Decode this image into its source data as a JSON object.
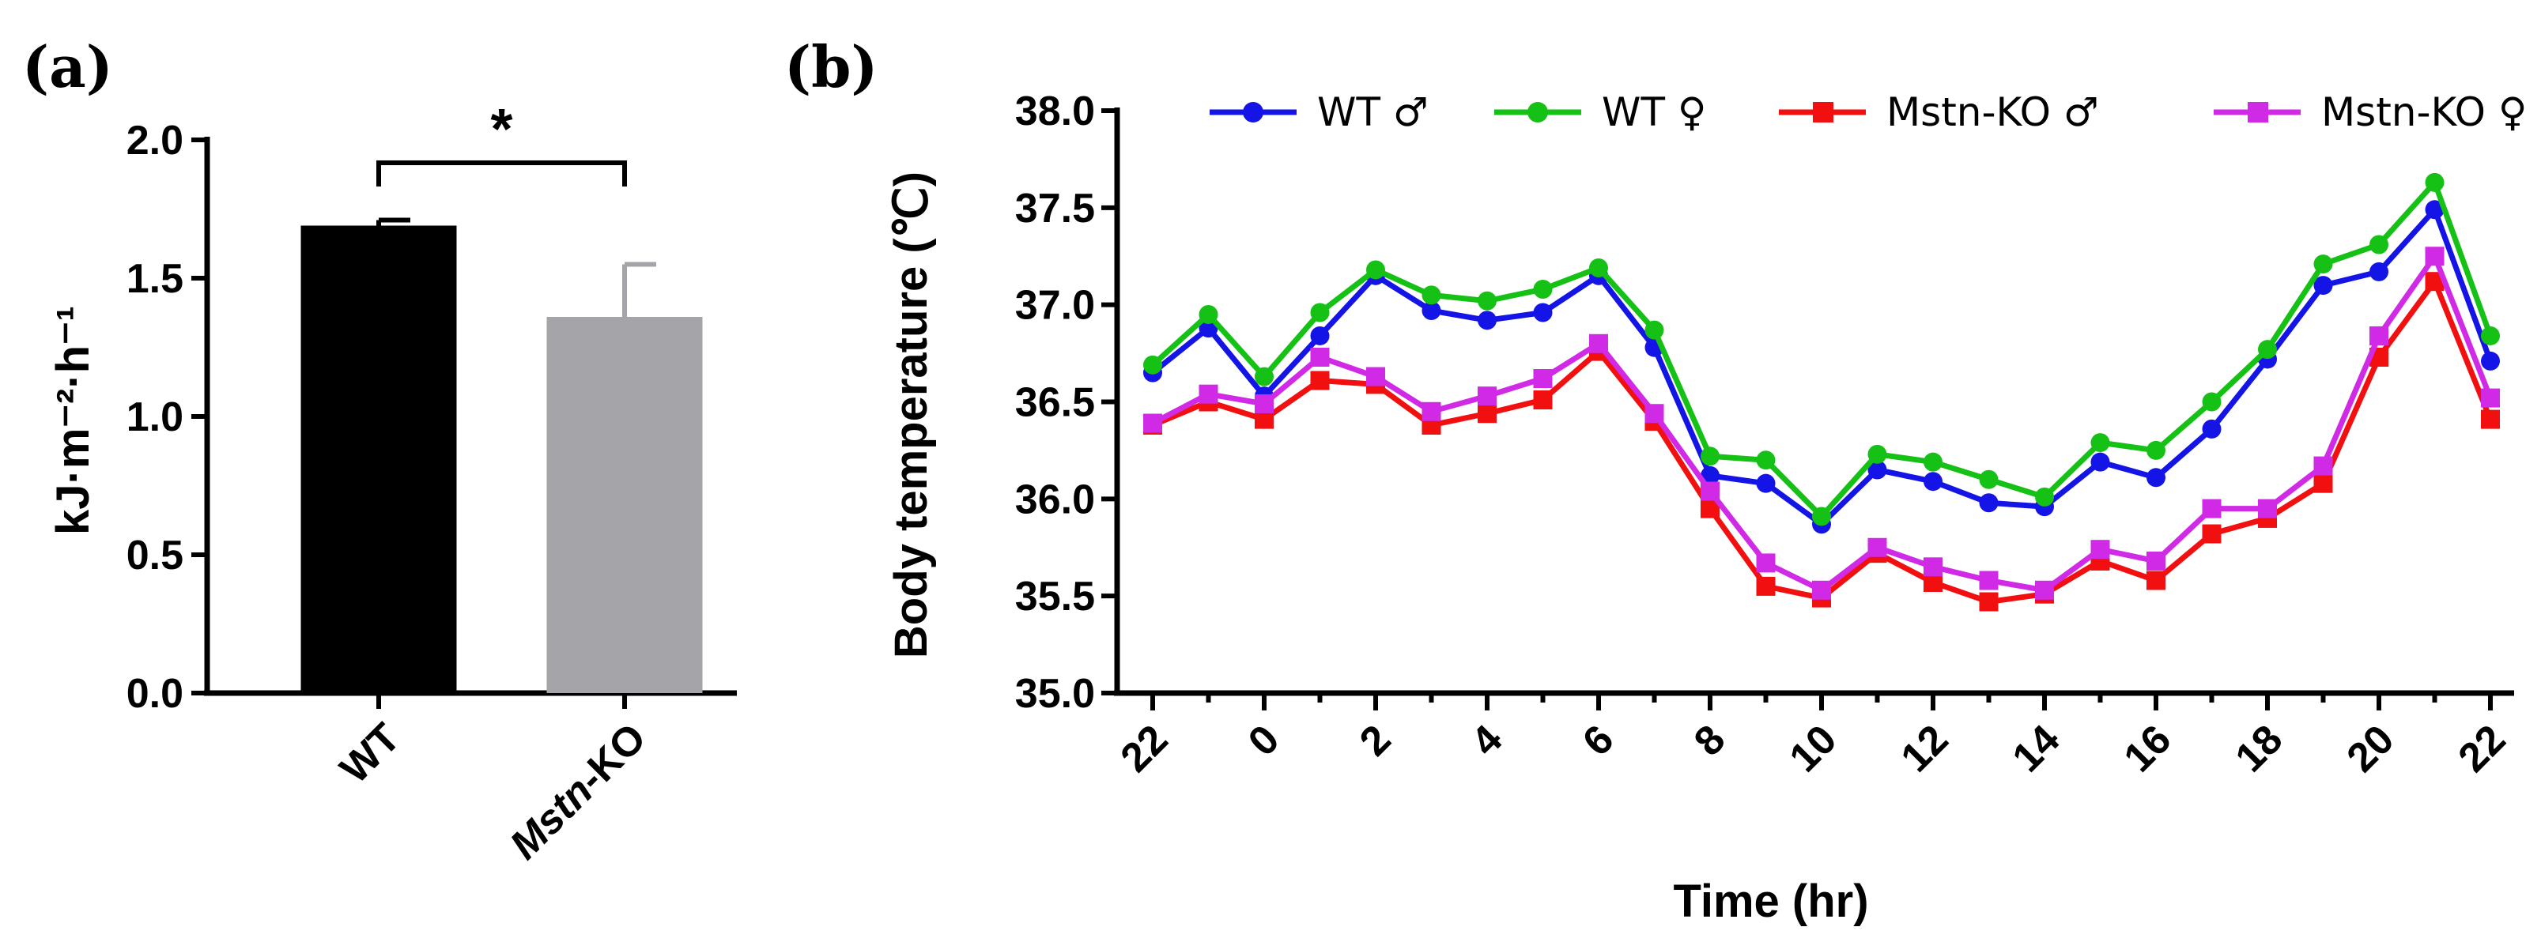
{
  "panels": {
    "a_label": "(a)",
    "b_label": "(b)"
  },
  "chart_data": [
    {
      "type": "bar",
      "ylabel": "kJ·m⁻²·h⁻¹",
      "ylim": [
        0,
        2.0
      ],
      "yticks": [
        "0.0",
        "0.5",
        "1.0",
        "1.5",
        "2.0"
      ],
      "categories": [
        {
          "label": "WT",
          "name_italic": "",
          "name_rest": "WT"
        },
        {
          "label": "Mstn-KO",
          "name_italic": "Mstn",
          "name_rest": "-KO"
        }
      ],
      "values": [
        1.69,
        1.36
      ],
      "errors": [
        0.02,
        0.19
      ],
      "colors": [
        "#000000",
        "#a5a4a9"
      ],
      "significance": {
        "between": [
          0,
          1
        ],
        "label": "*"
      }
    },
    {
      "type": "line",
      "ylabel": "Body temperature (℃)",
      "xlabel": "Time (hr)",
      "ylim": [
        35.0,
        38.0
      ],
      "yticks": [
        "35.0",
        "35.5",
        "36.0",
        "36.5",
        "37.0",
        "37.5",
        "38.0"
      ],
      "x_tick_labels": [
        "22",
        "0",
        "2",
        "4",
        "6",
        "8",
        "10",
        "12",
        "14",
        "16",
        "18",
        "20",
        "22"
      ],
      "x_hours": [
        "22",
        "23",
        "0",
        "1",
        "2",
        "3",
        "4",
        "5",
        "6",
        "7",
        "8",
        "9",
        "10",
        "11",
        "12",
        "13",
        "14",
        "15",
        "16",
        "17",
        "18",
        "19",
        "20",
        "21",
        "22"
      ],
      "legend_placement": "top",
      "series": [
        {
          "name": "WT ♂",
          "color": "#1414e6",
          "marker": "circle",
          "values": [
            36.65,
            36.88,
            36.53,
            36.84,
            37.15,
            36.97,
            36.92,
            36.96,
            37.15,
            36.78,
            36.12,
            36.08,
            35.87,
            36.15,
            36.09,
            35.98,
            35.96,
            36.19,
            36.11,
            36.36,
            36.72,
            37.1,
            37.17,
            37.49,
            36.71
          ]
        },
        {
          "name": "WT ♀",
          "color": "#16c116",
          "marker": "circle",
          "values": [
            36.69,
            36.95,
            36.63,
            36.96,
            37.18,
            37.05,
            37.02,
            37.08,
            37.19,
            36.87,
            36.22,
            36.2,
            35.91,
            36.23,
            36.19,
            36.1,
            36.01,
            36.29,
            36.25,
            36.5,
            36.77,
            37.21,
            37.31,
            37.63,
            36.84
          ]
        },
        {
          "name": "Mstn-KO ♂",
          "color": "#f20f0f",
          "marker": "square",
          "values": [
            36.38,
            36.5,
            36.41,
            36.61,
            36.59,
            36.38,
            36.44,
            36.51,
            36.76,
            36.4,
            35.95,
            35.55,
            35.49,
            35.72,
            35.57,
            35.47,
            35.51,
            35.68,
            35.58,
            35.82,
            35.9,
            36.08,
            36.73,
            37.12,
            36.41
          ]
        },
        {
          "name": "Mstn-KO ♀",
          "color": "#d12ae6",
          "marker": "square",
          "values": [
            36.39,
            36.54,
            36.49,
            36.73,
            36.63,
            36.45,
            36.53,
            36.62,
            36.8,
            36.44,
            36.04,
            35.67,
            35.53,
            35.75,
            35.65,
            35.58,
            35.53,
            35.74,
            35.68,
            35.95,
            35.95,
            36.17,
            36.84,
            37.25,
            36.52
          ]
        }
      ]
    }
  ]
}
